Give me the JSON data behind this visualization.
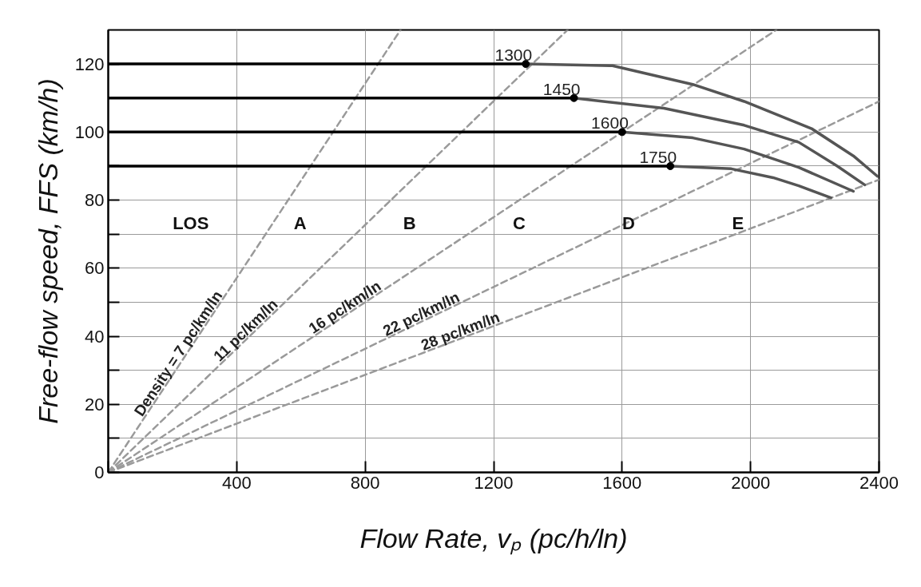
{
  "chart_data": {
    "type": "line",
    "xlabel": "Flow Rate, vₚ (pc/h/ln)",
    "ylabel": "Free-flow speed, FFS (km/h)",
    "xlim": [
      0,
      2400
    ],
    "ylim": [
      0,
      130
    ],
    "xticks": [
      {
        "value": 0,
        "label": null
      },
      400,
      800,
      1200,
      1600,
      2000,
      2400
    ],
    "yticks": [
      0,
      {
        "value": 10,
        "label": null
      },
      20,
      {
        "value": 30,
        "label": null
      },
      40,
      {
        "value": 50,
        "label": null
      },
      60,
      {
        "value": 70,
        "label": null
      },
      80,
      {
        "value": 90,
        "label": null
      },
      100,
      {
        "value": 110,
        "label": null
      },
      120
    ],
    "grid": true,
    "legend": false,
    "series": [
      {
        "line_style": "dashed",
        "color": "#9a9a9a",
        "name": "Density = 7 pc/km/ln",
        "x": [
          0,
          910
        ],
        "values": [
          0,
          130
        ]
      },
      {
        "type": "line",
        "line_style": "dashed",
        "color": "#9a9a9a",
        "name": "11 pc/km/ln",
        "x": [
          0,
          1430
        ],
        "values": [
          0,
          130
        ]
      },
      {
        "type": "line",
        "line_style": "dashed",
        "color": "#9a9a9a",
        "name": "16 pc/km/ln",
        "x": [
          0,
          2080
        ],
        "values": [
          0,
          130
        ]
      },
      {
        "type": "line",
        "line_style": "dashed",
        "color": "#9a9a9a",
        "name": "22 pc/km/ln",
        "x": [
          0,
          2400
        ],
        "values": [
          0,
          109
        ]
      },
      {
        "type": "line",
        "line_style": "dashed",
        "color": "#9a9a9a",
        "name": "28 pc/km/ln",
        "x": [
          0,
          2400
        ],
        "values": [
          0,
          86
        ]
      },
      {
        "type": "line",
        "line_style": "solid",
        "color": "#000000",
        "x": [
          0,
          1300
        ],
        "values": [
          120,
          120
        ]
      },
      {
        "type": "line",
        "line_style": "solid",
        "color": "#000000",
        "x": [
          0,
          1450
        ],
        "values": [
          110,
          110
        ]
      },
      {
        "type": "line",
        "line_style": "solid",
        "color": "#000000",
        "x": [
          0,
          1600
        ],
        "values": [
          100,
          100
        ]
      },
      {
        "type": "line",
        "line_style": "solid",
        "color": "#000000",
        "x": [
          0,
          1750
        ],
        "values": [
          90,
          90
        ]
      },
      {
        "type": "line",
        "line_style": "solid",
        "color": "#555555",
        "x": [
          1300,
          1570,
          1820,
          1980,
          2190,
          2320,
          2395
        ],
        "values": [
          120,
          119.5,
          114,
          109,
          101,
          93,
          87
        ]
      },
      {
        "type": "line",
        "line_style": "solid",
        "color": "#555555",
        "x": [
          1450,
          1730,
          1980,
          2150,
          2270,
          2355
        ],
        "values": [
          110,
          107,
          102,
          97,
          90,
          84.5
        ]
      },
      {
        "type": "line",
        "line_style": "solid",
        "color": "#555555",
        "x": [
          1600,
          1820,
          1980,
          2150,
          2320
        ],
        "values": [
          100,
          98.3,
          95,
          89.6,
          82.6
        ]
      },
      {
        "type": "line",
        "line_style": "solid",
        "color": "#555555",
        "x": [
          1750,
          1940,
          2070,
          2150,
          2250
        ],
        "values": [
          90,
          89.2,
          86.6,
          84.2,
          80.7
        ]
      },
      {
        "type": "scatter",
        "marker": "circle",
        "color": "#000000",
        "x": [
          1300,
          1450,
          1600,
          1750
        ],
        "values": [
          120,
          110,
          100,
          90
        ]
      }
    ],
    "annotations": [
      {
        "text": "1300",
        "x": 1300,
        "y": 120
      },
      {
        "text": "1450",
        "x": 1450,
        "y": 110
      },
      {
        "text": "1600",
        "x": 1600,
        "y": 100
      },
      {
        "text": "1750",
        "x": 1750,
        "y": 90
      },
      "LOS",
      "A",
      "B",
      "C",
      "D",
      "E"
    ]
  }
}
